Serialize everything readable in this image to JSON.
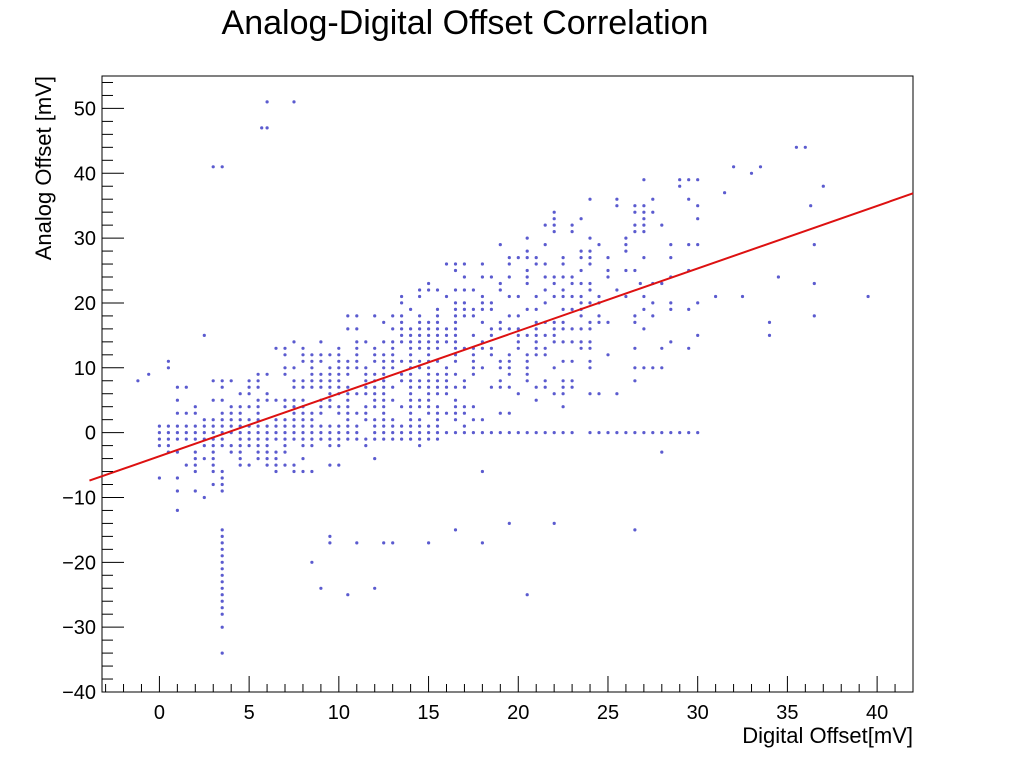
{
  "chart_data": {
    "type": "scatter",
    "title": "Analog-Digital Offset Correlation",
    "xlabel": "Digital Offset[mV]",
    "ylabel": "Analog Offset [mV]",
    "xlim": [
      -3.2,
      42
    ],
    "ylim": [
      -40,
      55
    ],
    "x_ticks": [
      0,
      5,
      10,
      15,
      20,
      25,
      30,
      35,
      40
    ],
    "y_ticks": [
      -40,
      -30,
      -20,
      -10,
      0,
      10,
      20,
      30,
      40,
      50
    ],
    "grid": false,
    "marker_color": "#5b5bcf",
    "fit_line_color": "#dd1111",
    "fit_line": {
      "x": [
        -3.9,
        42
      ],
      "y": [
        -7.4,
        36.9
      ]
    },
    "outliers": {
      "x": [
        -1.2,
        -0.6,
        0.5,
        0.5,
        1.0,
        2.5,
        3.0,
        3.5,
        3.5,
        6.0,
        6.0,
        5.7,
        7.5,
        8.5,
        9.0,
        9.5,
        9.5,
        10.5,
        11.0,
        12.0,
        12.5,
        13.0,
        15.0,
        16.5,
        18.0,
        18.0,
        19.5,
        20.5,
        22.0,
        26.5,
        26.8,
        28.0,
        29.0,
        31.5,
        32.0,
        33.0,
        33.5,
        34.0,
        34.0,
        34.5,
        35.5,
        36.0,
        36.5,
        37.0,
        39.5,
        36.3,
        36.5,
        30.0,
        31.0,
        32.5,
        36.5
      ],
      "y": [
        8,
        9,
        11,
        10,
        -12,
        15,
        41,
        41,
        -34,
        51,
        47,
        47,
        51,
        -20,
        -24,
        -16,
        -17,
        -25,
        -17,
        -24,
        -17,
        -17,
        -17,
        -15,
        -17,
        -6,
        -14,
        -25,
        -14,
        -15,
        23,
        -3,
        39,
        37,
        41,
        40,
        41,
        15,
        17,
        24,
        44,
        44,
        29,
        38,
        21,
        35,
        23,
        20,
        21,
        21,
        18
      ]
    }
  }
}
